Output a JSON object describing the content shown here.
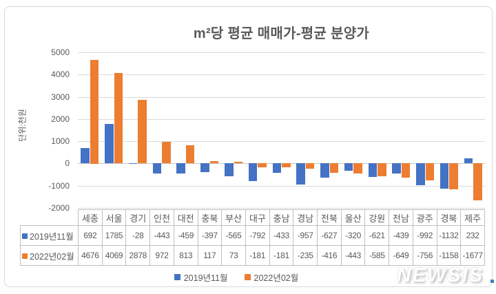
{
  "page": {
    "watermark": "NEWSIS"
  },
  "colors": {
    "series_2019": "#4472C4",
    "series_2022": "#ED7D31",
    "gridline": "#D9D9D9",
    "zero_line": "#C6C6C6",
    "axis_text": "#595959",
    "table_border": "#BFBFBF",
    "chart_border": "#D9D9D9",
    "watermark_shadow": "#BBBBBB",
    "background": "#FFFFFF"
  },
  "chart_data": {
    "type": "bar",
    "title": "m²당 평균 매매가-평균 분양가",
    "ylabel": "단위:천원",
    "categories": [
      "세종",
      "서울",
      "경기",
      "인천",
      "대전",
      "충북",
      "부산",
      "대구",
      "충남",
      "경남",
      "전북",
      "울산",
      "강원",
      "전남",
      "광주",
      "경북",
      "제주"
    ],
    "series": [
      {
        "name": "2019년11월",
        "color": "#4472C4",
        "values": [
          692,
          1785,
          -28,
          -443,
          -459,
          -397,
          -565,
          -792,
          -433,
          -957,
          -627,
          -320,
          -621,
          -439,
          -992,
          -1132,
          232
        ]
      },
      {
        "name": "2022년02월",
        "color": "#ED7D31",
        "values": [
          4676,
          4069,
          2878,
          972,
          813,
          117,
          73,
          -181,
          -181,
          -235,
          -416,
          -443,
          -585,
          -649,
          -756,
          -1158,
          -1677
        ]
      }
    ],
    "ylim": [
      -2000,
      5000
    ],
    "ytick_step": 1000,
    "ytick_labels": [
      "5000",
      "4000",
      "3000",
      "2000",
      "1000",
      "0",
      "-1000",
      "-2000"
    ],
    "grid": true,
    "legend_position": "bottom",
    "data_table": true
  }
}
